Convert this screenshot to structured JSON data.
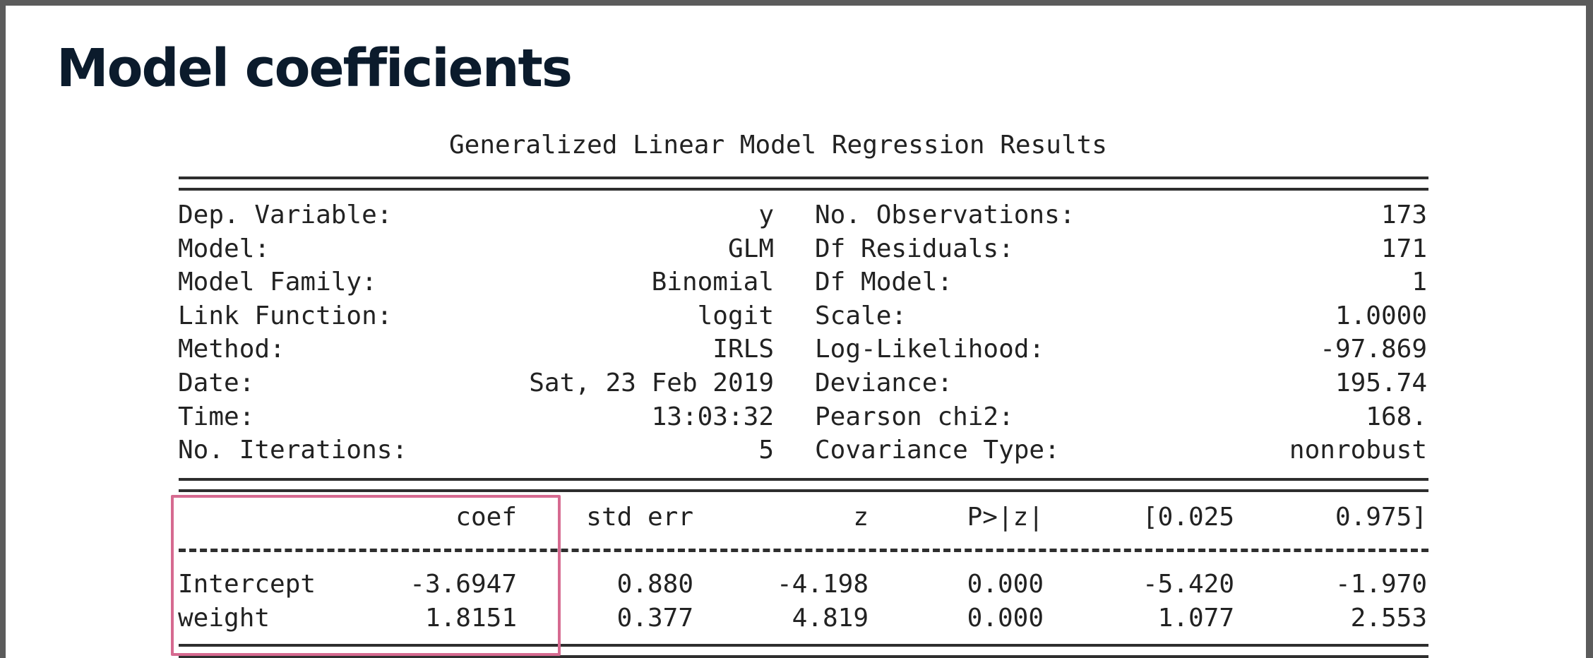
{
  "slide": {
    "title": "Model coefficients"
  },
  "summary": {
    "heading": "Generalized Linear Model Regression Results",
    "left_rows": [
      {
        "label": "Dep. Variable:",
        "value": "y"
      },
      {
        "label": "Model:",
        "value": "GLM"
      },
      {
        "label": "Model Family:",
        "value": "Binomial"
      },
      {
        "label": "Link Function:",
        "value": "logit"
      },
      {
        "label": "Method:",
        "value": "IRLS"
      },
      {
        "label": "Date:",
        "value": "Sat, 23 Feb 2019"
      },
      {
        "label": "Time:",
        "value": "13:03:32"
      },
      {
        "label": "No. Iterations:",
        "value": "5"
      }
    ],
    "right_rows": [
      {
        "label": "No. Observations:",
        "value": "173"
      },
      {
        "label": "Df Residuals:",
        "value": "171"
      },
      {
        "label": "Df Model:",
        "value": "1"
      },
      {
        "label": "Scale:",
        "value": "1.0000"
      },
      {
        "label": "Log-Likelihood:",
        "value": "-97.869"
      },
      {
        "label": "Deviance:",
        "value": "195.74"
      },
      {
        "label": "Pearson chi2:",
        "value": "168."
      },
      {
        "label": "Covariance Type:",
        "value": "nonrobust"
      }
    ]
  },
  "coefficients": {
    "headers": [
      "coef",
      "std err",
      "z",
      "P>|z|",
      "[0.025",
      "0.975]"
    ],
    "rows": [
      {
        "name": "Intercept",
        "values": [
          "-3.6947",
          "0.880",
          "-4.198",
          "0.000",
          "-5.420",
          "-1.970"
        ]
      },
      {
        "name": "weight",
        "values": [
          "1.8151",
          "0.377",
          "4.819",
          "0.000",
          "1.077",
          "2.553"
        ]
      }
    ]
  },
  "highlight_color": "#d66a90"
}
